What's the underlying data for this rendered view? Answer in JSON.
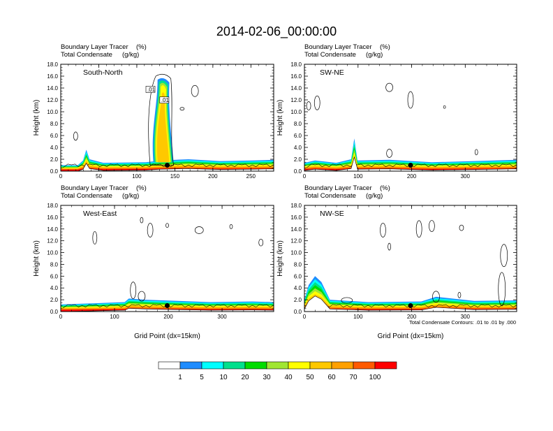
{
  "title": "2014-02-06_00:00:00",
  "header": {
    "line1_left": "Boundary Layer Tracer",
    "line1_right": "(%)",
    "line2_left": "Total Condensate",
    "line2_right": "(g/kg)"
  },
  "chart_data": [
    {
      "type": "cross-section-contour",
      "panel_label": "South-North",
      "xlim": [
        0,
        280
      ],
      "xticks": [
        "0",
        "50",
        "100",
        "150",
        "200",
        "250"
      ],
      "ylim": [
        0,
        18
      ],
      "yticks": [
        "0.0",
        "2.0",
        "4.0",
        "6.0",
        "8.0",
        "10.0",
        "12.0",
        "14.0",
        "16.0",
        "18.0"
      ],
      "ylabel": "Height (km)",
      "xlabel": "",
      "marker_x": 140,
      "contour_labels": [
        ".01",
        ".01"
      ]
    },
    {
      "type": "cross-section-contour",
      "panel_label": "SW-NE",
      "xlim": [
        0,
        396
      ],
      "xticks": [
        "0",
        "100",
        "200",
        "300"
      ],
      "ylim": [
        0,
        18
      ],
      "yticks": [
        "0.0",
        "2.0",
        "4.0",
        "6.0",
        "8.0",
        "10.0",
        "12.0",
        "14.0",
        "16.0",
        "18.0"
      ],
      "ylabel": "Height (km)",
      "xlabel": "",
      "marker_x": 198
    },
    {
      "type": "cross-section-contour",
      "panel_label": "West-East",
      "xlim": [
        0,
        396
      ],
      "xticks": [
        "0",
        "100",
        "200",
        "300"
      ],
      "ylim": [
        0,
        18
      ],
      "yticks": [
        "0.0",
        "2.0",
        "4.0",
        "6.0",
        "8.0",
        "10.0",
        "12.0",
        "14.0",
        "16.0",
        "18.0"
      ],
      "ylabel": "Height (km)",
      "xlabel": "Grid Point (dx=15km)",
      "marker_x": 198
    },
    {
      "type": "cross-section-contour",
      "panel_label": "NW-SE",
      "xlim": [
        0,
        396
      ],
      "xticks": [
        "0",
        "100",
        "200",
        "300"
      ],
      "ylim": [
        0,
        18
      ],
      "yticks": [
        "0.0",
        "2.0",
        "4.0",
        "6.0",
        "8.0",
        "10.0",
        "12.0",
        "14.0",
        "16.0",
        "18.0"
      ],
      "ylabel": "Height (km)",
      "xlabel": "Grid Point (dx=15km)",
      "marker_x": 198
    }
  ],
  "contour_note": "Total Condensate Contours: .01 to .01 by .000",
  "colorbar": {
    "labels": [
      "1",
      "5",
      "10",
      "20",
      "30",
      "40",
      "50",
      "60",
      "70",
      "100"
    ],
    "colors": [
      "#ffffff",
      "#1e8cff",
      "#00ffff",
      "#00e08c",
      "#00dc00",
      "#a0e632",
      "#ffff00",
      "#ffc800",
      "#ffa000",
      "#ff5a00",
      "#ff0000"
    ]
  }
}
